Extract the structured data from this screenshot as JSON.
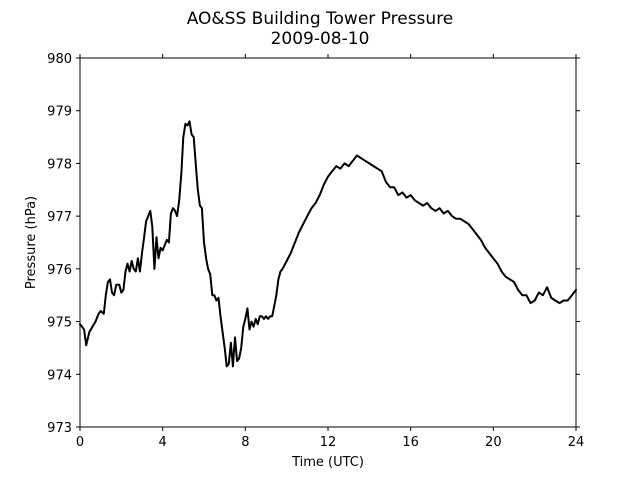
{
  "chart_data": {
    "type": "line",
    "title": "AO&SS Building Tower Pressure",
    "subtitle": "2009-08-10",
    "xlabel": "Time (UTC)",
    "ylabel": "Pressure (hPa)",
    "xlim": [
      0,
      24
    ],
    "ylim": [
      973,
      980
    ],
    "xticks": [
      0,
      4,
      8,
      12,
      16,
      20,
      24
    ],
    "yticks": [
      973,
      974,
      975,
      976,
      977,
      978,
      979,
      980
    ],
    "grid": false,
    "line_color": "#000000",
    "series": [
      {
        "points": [
          [
            0.0,
            974.95
          ],
          [
            0.1,
            974.9
          ],
          [
            0.2,
            974.85
          ],
          [
            0.3,
            974.55
          ],
          [
            0.45,
            974.8
          ],
          [
            0.6,
            974.9
          ],
          [
            0.75,
            975.0
          ],
          [
            0.9,
            975.15
          ],
          [
            1.0,
            975.2
          ],
          [
            1.15,
            975.15
          ],
          [
            1.25,
            975.5
          ],
          [
            1.35,
            975.75
          ],
          [
            1.45,
            975.8
          ],
          [
            1.55,
            975.55
          ],
          [
            1.65,
            975.5
          ],
          [
            1.75,
            975.7
          ],
          [
            1.9,
            975.7
          ],
          [
            2.0,
            975.55
          ],
          [
            2.1,
            975.6
          ],
          [
            2.2,
            975.95
          ],
          [
            2.3,
            976.1
          ],
          [
            2.4,
            975.95
          ],
          [
            2.5,
            976.15
          ],
          [
            2.6,
            976.0
          ],
          [
            2.7,
            975.95
          ],
          [
            2.8,
            976.2
          ],
          [
            2.9,
            975.95
          ],
          [
            3.0,
            976.3
          ],
          [
            3.1,
            976.6
          ],
          [
            3.2,
            976.9
          ],
          [
            3.3,
            977.0
          ],
          [
            3.4,
            977.1
          ],
          [
            3.5,
            976.8
          ],
          [
            3.6,
            976.0
          ],
          [
            3.7,
            976.6
          ],
          [
            3.8,
            976.2
          ],
          [
            3.9,
            976.4
          ],
          [
            4.0,
            976.35
          ],
          [
            4.1,
            976.45
          ],
          [
            4.2,
            976.55
          ],
          [
            4.3,
            976.5
          ],
          [
            4.4,
            977.05
          ],
          [
            4.5,
            977.15
          ],
          [
            4.6,
            977.1
          ],
          [
            4.7,
            977.0
          ],
          [
            4.8,
            977.3
          ],
          [
            4.9,
            977.8
          ],
          [
            5.0,
            978.5
          ],
          [
            5.1,
            978.75
          ],
          [
            5.2,
            978.72
          ],
          [
            5.3,
            978.8
          ],
          [
            5.4,
            978.55
          ],
          [
            5.5,
            978.5
          ],
          [
            5.6,
            978.0
          ],
          [
            5.7,
            977.5
          ],
          [
            5.8,
            977.2
          ],
          [
            5.9,
            977.15
          ],
          [
            6.0,
            976.5
          ],
          [
            6.1,
            976.2
          ],
          [
            6.2,
            976.0
          ],
          [
            6.3,
            975.9
          ],
          [
            6.4,
            975.5
          ],
          [
            6.5,
            975.5
          ],
          [
            6.6,
            975.4
          ],
          [
            6.7,
            975.45
          ],
          [
            6.8,
            975.1
          ],
          [
            6.9,
            974.8
          ],
          [
            7.0,
            974.5
          ],
          [
            7.1,
            974.15
          ],
          [
            7.2,
            974.2
          ],
          [
            7.3,
            974.6
          ],
          [
            7.4,
            974.15
          ],
          [
            7.5,
            974.7
          ],
          [
            7.6,
            974.25
          ],
          [
            7.7,
            974.3
          ],
          [
            7.8,
            974.5
          ],
          [
            7.9,
            974.9
          ],
          [
            8.0,
            975.05
          ],
          [
            8.1,
            975.25
          ],
          [
            8.2,
            974.85
          ],
          [
            8.3,
            975.0
          ],
          [
            8.4,
            974.9
          ],
          [
            8.5,
            975.05
          ],
          [
            8.6,
            974.95
          ],
          [
            8.7,
            975.1
          ],
          [
            8.8,
            975.1
          ],
          [
            8.9,
            975.05
          ],
          [
            9.0,
            975.1
          ],
          [
            9.1,
            975.05
          ],
          [
            9.2,
            975.1
          ],
          [
            9.3,
            975.1
          ],
          [
            9.4,
            975.3
          ],
          [
            9.5,
            975.5
          ],
          [
            9.6,
            975.8
          ],
          [
            9.7,
            975.95
          ],
          [
            9.8,
            976.0
          ],
          [
            10.0,
            976.15
          ],
          [
            10.2,
            976.3
          ],
          [
            10.4,
            976.5
          ],
          [
            10.6,
            976.7
          ],
          [
            10.8,
            976.85
          ],
          [
            11.0,
            977.0
          ],
          [
            11.2,
            977.15
          ],
          [
            11.4,
            977.25
          ],
          [
            11.6,
            977.4
          ],
          [
            11.8,
            977.6
          ],
          [
            12.0,
            977.75
          ],
          [
            12.2,
            977.85
          ],
          [
            12.4,
            977.95
          ],
          [
            12.6,
            977.9
          ],
          [
            12.8,
            978.0
          ],
          [
            13.0,
            977.95
          ],
          [
            13.2,
            978.05
          ],
          [
            13.4,
            978.15
          ],
          [
            13.6,
            978.1
          ],
          [
            13.8,
            978.05
          ],
          [
            14.0,
            978.0
          ],
          [
            14.2,
            977.95
          ],
          [
            14.4,
            977.9
          ],
          [
            14.6,
            977.85
          ],
          [
            14.8,
            977.65
          ],
          [
            15.0,
            977.55
          ],
          [
            15.2,
            977.55
          ],
          [
            15.4,
            977.4
          ],
          [
            15.6,
            977.45
          ],
          [
            15.8,
            977.35
          ],
          [
            16.0,
            977.4
          ],
          [
            16.2,
            977.3
          ],
          [
            16.4,
            977.25
          ],
          [
            16.6,
            977.2
          ],
          [
            16.8,
            977.25
          ],
          [
            17.0,
            977.15
          ],
          [
            17.2,
            977.1
          ],
          [
            17.4,
            977.15
          ],
          [
            17.6,
            977.05
          ],
          [
            17.8,
            977.1
          ],
          [
            18.0,
            977.0
          ],
          [
            18.2,
            976.95
          ],
          [
            18.4,
            976.95
          ],
          [
            18.6,
            976.9
          ],
          [
            18.8,
            976.85
          ],
          [
            19.0,
            976.75
          ],
          [
            19.2,
            976.65
          ],
          [
            19.4,
            976.55
          ],
          [
            19.6,
            976.4
          ],
          [
            19.8,
            976.3
          ],
          [
            20.0,
            976.2
          ],
          [
            20.2,
            976.1
          ],
          [
            20.4,
            975.95
          ],
          [
            20.6,
            975.85
          ],
          [
            20.8,
            975.8
          ],
          [
            21.0,
            975.75
          ],
          [
            21.2,
            975.6
          ],
          [
            21.4,
            975.5
          ],
          [
            21.6,
            975.5
          ],
          [
            21.8,
            975.35
          ],
          [
            22.0,
            975.4
          ],
          [
            22.2,
            975.55
          ],
          [
            22.4,
            975.5
          ],
          [
            22.6,
            975.65
          ],
          [
            22.8,
            975.45
          ],
          [
            23.0,
            975.4
          ],
          [
            23.2,
            975.35
          ],
          [
            23.4,
            975.4
          ],
          [
            23.6,
            975.4
          ],
          [
            23.8,
            975.5
          ],
          [
            24.0,
            975.6
          ]
        ]
      }
    ]
  }
}
